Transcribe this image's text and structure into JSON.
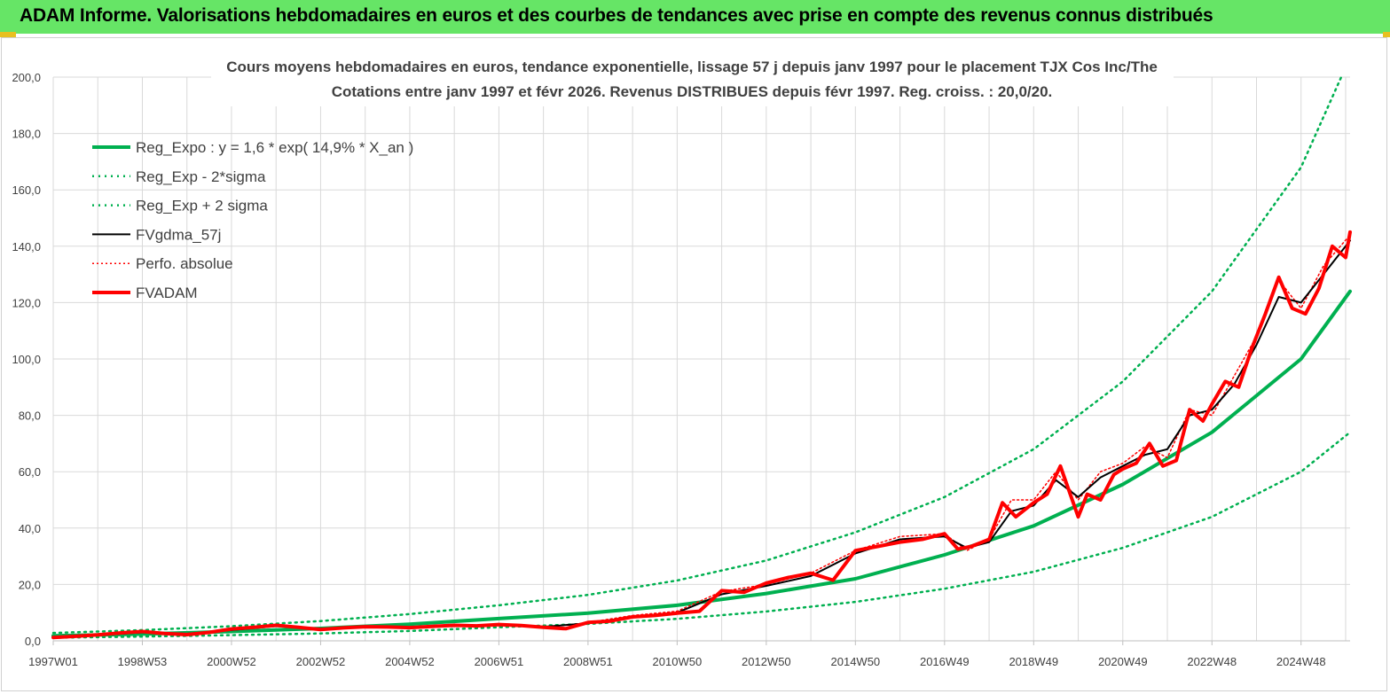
{
  "header": {
    "title": "ADAM Informe. Valorisations hebdomadaires en euros et des courbes de tendances avec prise en compte des revenus connus distribués"
  },
  "colors": {
    "banner": "#66e566",
    "reg_expo": "#00b050",
    "sigma_lines": "#00b050",
    "fvgdma": "#000000",
    "fvadam": "#ff0000",
    "perfo": "#ff0000",
    "grid": "#d9d9d9"
  },
  "chart_data": {
    "type": "line",
    "title_line1": "Cours moyens hebdomadaires en euros, tendance exponentielle, lissage 57 j depuis janv 1997 pour le placement TJX Cos Inc/The",
    "title_line2": "Cotations entre janv 1997 et févr 2026. Revenus DISTRIBUES depuis févr 1997. Reg. croiss. : 20,0/20.",
    "xlabel": "",
    "ylabel": "",
    "ylim": [
      0,
      200
    ],
    "xlim": [
      1997.0,
      2026.1
    ],
    "y_ticks": [
      "0,0",
      "20,0",
      "40,0",
      "60,0",
      "80,0",
      "100,0",
      "120,0",
      "140,0",
      "160,0",
      "180,0",
      "200,0"
    ],
    "x_tick_labels": [
      "1997W01",
      "1998W53",
      "2000W52",
      "2002W52",
      "2004W52",
      "2006W51",
      "2008W51",
      "2010W50",
      "2012W50",
      "2014W50",
      "2016W49",
      "2018W49",
      "2020W49",
      "2022W48",
      "2024W48"
    ],
    "x_tick_years": [
      1997.0,
      1999.0,
      2001.0,
      2003.0,
      2005.0,
      2007.0,
      2009.0,
      2011.0,
      2013.0,
      2015.0,
      2017.0,
      2019.0,
      2021.0,
      2023.0,
      2025.0
    ],
    "grid": true,
    "legend_position": "top-left",
    "legend": [
      {
        "label": "Reg_Expo : y = 1,6 * exp( 14,9% *  X_an )",
        "style": "solid-thick",
        "color": "#00b050"
      },
      {
        "label": "Reg_Exp - 2*sigma",
        "style": "dotted",
        "color": "#00b050"
      },
      {
        "label": "Reg_Exp + 2 sigma",
        "style": "dotted",
        "color": "#00b050"
      },
      {
        "label": "FVgdma_57j",
        "style": "solid",
        "color": "#000000"
      },
      {
        "label": "Perfo. absolue",
        "style": "dotted-thin",
        "color": "#ff0000"
      },
      {
        "label": "FVADAM",
        "style": "solid-thick",
        "color": "#ff0000"
      }
    ],
    "series": [
      {
        "name": "Reg_Expo : y = 1,6 * exp( 14,9% *  X_an )",
        "x": [
          1997.0,
          1999.0,
          2001.0,
          2003.0,
          2005.0,
          2007.0,
          2009.0,
          2011.0,
          2013.0,
          2015.0,
          2017.0,
          2019.0,
          2021.0,
          2023.0,
          2025.0,
          2026.1
        ],
        "y": [
          1.8,
          2.4,
          3.3,
          4.4,
          5.9,
          7.9,
          9.8,
          12.6,
          16.8,
          22.0,
          30.5,
          40.8,
          55.5,
          74.0,
          100.0,
          124.0
        ]
      },
      {
        "name": "Reg_Exp - 2*sigma",
        "x": [
          1997.0,
          1999.0,
          2001.0,
          2003.0,
          2005.0,
          2007.0,
          2009.0,
          2011.0,
          2013.0,
          2015.0,
          2017.0,
          2019.0,
          2021.0,
          2023.0,
          2025.0,
          2026.1
        ],
        "y": [
          1.1,
          1.5,
          2.0,
          2.6,
          3.5,
          4.8,
          6.0,
          7.8,
          10.4,
          13.8,
          18.5,
          24.5,
          33.0,
          44.0,
          60.0,
          74.0
        ]
      },
      {
        "name": "Reg_Exp + 2 sigma",
        "x": [
          1997.0,
          1999.0,
          2001.0,
          2003.0,
          2005.0,
          2007.0,
          2009.0,
          2011.0,
          2013.0,
          2015.0,
          2017.0,
          2019.0,
          2021.0,
          2023.0,
          2025.0,
          2025.9
        ],
        "y": [
          2.8,
          3.8,
          5.2,
          7.0,
          9.5,
          12.6,
          16.3,
          21.4,
          28.5,
          38.5,
          51.0,
          68.0,
          92.0,
          124.0,
          168.0,
          200.0
        ]
      },
      {
        "name": "FVgdma_57j",
        "x": [
          1997.0,
          1998.0,
          1999.0,
          2000.0,
          2001.0,
          2002.0,
          2003.0,
          2004.0,
          2005.0,
          2006.0,
          2007.0,
          2008.0,
          2009.0,
          2010.0,
          2011.0,
          2012.0,
          2013.0,
          2014.0,
          2015.0,
          2016.0,
          2017.0,
          2017.5,
          2018.0,
          2018.5,
          2019.0,
          2019.5,
          2020.0,
          2020.5,
          2021.0,
          2021.5,
          2022.0,
          2022.5,
          2023.0,
          2023.5,
          2024.0,
          2024.5,
          2025.0,
          2025.5,
          2026.1
        ],
        "y": [
          1.2,
          2.0,
          3.0,
          2.5,
          3.8,
          5.2,
          4.3,
          4.8,
          4.9,
          5.2,
          5.5,
          5.0,
          6.2,
          8.5,
          10.0,
          16.5,
          19.5,
          23.0,
          31.0,
          36.0,
          37.0,
          33.0,
          35.0,
          46.0,
          48.0,
          57.0,
          51.0,
          58.0,
          62.0,
          66.0,
          68.0,
          80.0,
          82.0,
          91.0,
          105.0,
          122.0,
          120.0,
          130.0,
          142.0
        ]
      },
      {
        "name": "Perfo. absolue",
        "x": [
          1997.0,
          1998.0,
          1999.0,
          2000.0,
          2001.0,
          2002.0,
          2003.0,
          2004.0,
          2005.0,
          2006.0,
          2007.0,
          2008.0,
          2009.0,
          2010.0,
          2011.0,
          2012.0,
          2013.0,
          2014.0,
          2015.0,
          2016.0,
          2017.0,
          2017.5,
          2018.0,
          2018.5,
          2019.0,
          2019.5,
          2020.0,
          2020.5,
          2021.0,
          2021.5,
          2022.0,
          2022.5,
          2023.0,
          2023.5,
          2024.0,
          2024.5,
          2025.0,
          2025.5,
          2026.1
        ],
        "y": [
          1.2,
          2.1,
          3.2,
          2.3,
          4.0,
          5.4,
          4.1,
          5.0,
          4.8,
          5.4,
          5.7,
          4.6,
          6.5,
          9.0,
          10.5,
          17.5,
          20.0,
          24.0,
          32.0,
          37.0,
          38.0,
          32.0,
          36.0,
          50.0,
          50.0,
          60.0,
          50.0,
          60.0,
          63.0,
          69.0,
          65.0,
          82.0,
          80.0,
          94.0,
          108.0,
          128.0,
          118.0,
          133.0,
          144.0
        ]
      },
      {
        "name": "FVADAM",
        "x": [
          1997.0,
          1997.5,
          1998.0,
          1998.5,
          1999.0,
          1999.5,
          2000.0,
          2000.5,
          2001.0,
          2001.5,
          2002.0,
          2002.5,
          2003.0,
          2003.5,
          2004.0,
          2004.5,
          2005.0,
          2005.5,
          2006.0,
          2006.5,
          2007.0,
          2007.5,
          2008.0,
          2008.5,
          2009.0,
          2009.5,
          2010.0,
          2010.5,
          2011.0,
          2011.5,
          2012.0,
          2012.5,
          2013.0,
          2013.5,
          2014.0,
          2014.5,
          2015.0,
          2015.5,
          2016.0,
          2016.5,
          2017.0,
          2017.3,
          2017.6,
          2018.0,
          2018.3,
          2018.6,
          2019.0,
          2019.3,
          2019.6,
          2020.0,
          2020.2,
          2020.5,
          2020.8,
          2021.0,
          2021.3,
          2021.6,
          2021.9,
          2022.2,
          2022.5,
          2022.8,
          2023.0,
          2023.3,
          2023.6,
          2023.9,
          2024.2,
          2024.5,
          2024.8,
          2025.1,
          2025.4,
          2025.7,
          2026.0,
          2026.1
        ],
        "y": [
          1.2,
          1.6,
          2.1,
          2.8,
          3.3,
          2.6,
          2.2,
          3.0,
          4.2,
          4.8,
          5.5,
          4.8,
          4.0,
          4.6,
          5.0,
          4.9,
          4.7,
          5.1,
          5.5,
          5.3,
          5.8,
          5.4,
          4.8,
          4.3,
          6.5,
          7.0,
          8.5,
          9.0,
          9.8,
          10.5,
          17.8,
          17.2,
          20.5,
          22.5,
          24.0,
          21.5,
          32.0,
          33.5,
          35.0,
          36.0,
          38.0,
          32.5,
          33.5,
          36.0,
          49.0,
          44.0,
          49.0,
          52.0,
          62.0,
          44.0,
          52.0,
          50.0,
          59.0,
          61.0,
          63.0,
          70.0,
          62.0,
          64.0,
          82.0,
          78.0,
          84.0,
          92.0,
          90.0,
          104.0,
          116.0,
          129.0,
          118.0,
          116.0,
          125.0,
          140.0,
          136.0,
          145.0
        ]
      }
    ]
  }
}
